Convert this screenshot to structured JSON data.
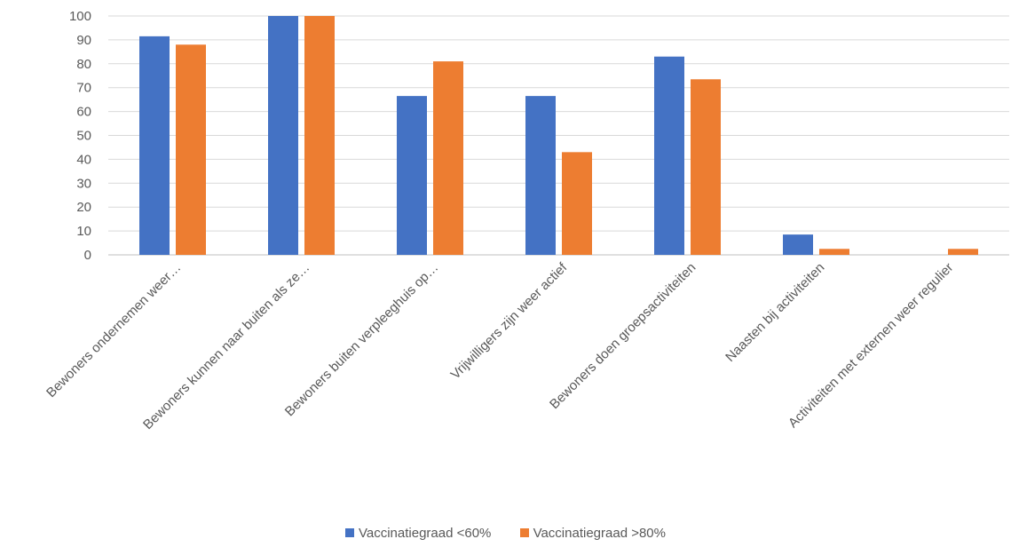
{
  "chart_data": {
    "type": "bar",
    "categories": [
      "Bewoners ondernemen weer…",
      "Bewoners kunnen naar buiten als ze…",
      "Bewoners buiten verpleeghuis op…",
      "Vrijwilligers zijn weer actief",
      "Bewoners doen groepsactiviteiten",
      "Naasten bij activiteiten",
      "Activiteiten met externen weer regulier"
    ],
    "series": [
      {
        "name": "Vaccinatiegraad <60%",
        "color": "#4472C4",
        "values": [
          91.5,
          100,
          66.5,
          66.5,
          83,
          8.5,
          0
        ]
      },
      {
        "name": "Vaccinatiegraad >80%",
        "color": "#ED7D31",
        "values": [
          88,
          100,
          81,
          43,
          73.5,
          2.5,
          2.5
        ]
      }
    ],
    "ylim": [
      0,
      100
    ],
    "yticks": [
      0,
      10,
      20,
      30,
      40,
      50,
      60,
      70,
      80,
      90,
      100
    ],
    "title": "",
    "xlabel": "",
    "ylabel": "",
    "grid": true,
    "legend_position": "bottom"
  }
}
